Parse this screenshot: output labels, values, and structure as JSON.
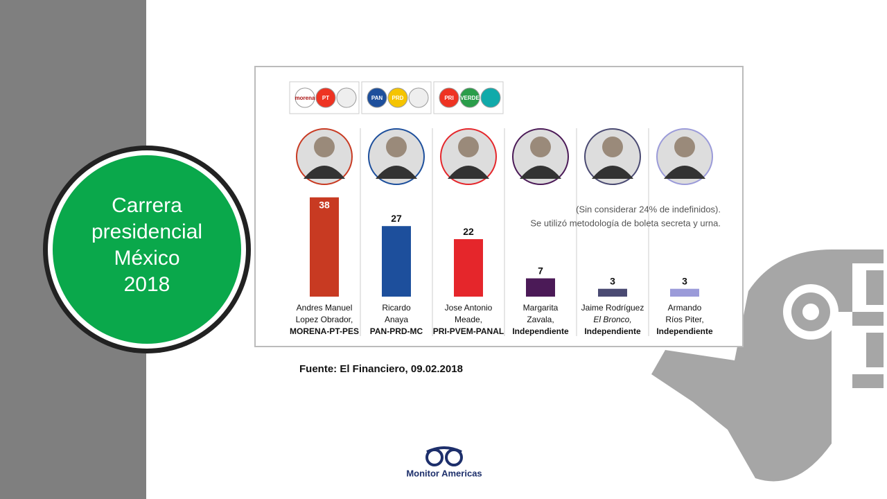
{
  "slide": {
    "title_lines": [
      "Carrera",
      "presidencial",
      "México",
      "2018"
    ],
    "source": "Fuente: El Financiero, 09.02.2018",
    "logo": "Monitor Americas"
  },
  "chart_data": {
    "type": "bar",
    "note_lines": [
      "(Sin considerar 24% de indefinidos).",
      "Se utilizó metodología de boleta secreta y urna."
    ],
    "party_logos": [
      [
        "morena",
        "PT"
      ],
      [
        "PAN",
        "PRD"
      ],
      [
        "PRI",
        "VERDE"
      ]
    ],
    "categories": [
      [
        "Andres Manuel",
        "Lopez Obrador,",
        "MORENA-PT-PES"
      ],
      [
        "Ricardo",
        "Anaya",
        "PAN-PRD-MC"
      ],
      [
        "Jose Antonio",
        "Meade,",
        "PRI-PVEM-PANAL"
      ],
      [
        "Margarita",
        "Zavala,",
        "Independiente"
      ],
      [
        "Jaime Rodríguez",
        "El Bronco,",
        "Independiente"
      ],
      [
        "Armando",
        "Ríos Piter,",
        "Independiente"
      ]
    ],
    "values": [
      38,
      27,
      22,
      7,
      3,
      3
    ],
    "colors": [
      "#c83a22",
      "#1d4f9c",
      "#e5262b",
      "#4b1a57",
      "#4a4a72",
      "#9b9bd9"
    ]
  }
}
